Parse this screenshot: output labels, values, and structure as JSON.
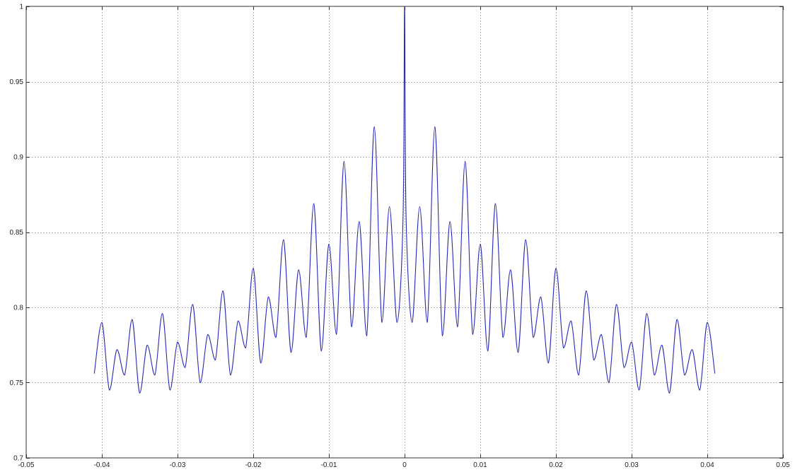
{
  "chart_data": {
    "type": "line",
    "title": "",
    "xlabel": "",
    "ylabel": "",
    "xlim": [
      -0.05,
      0.05
    ],
    "ylim": [
      0.7,
      1.0
    ],
    "grid": true,
    "legend": "none",
    "x_ticks": [
      -0.05,
      -0.04,
      -0.03,
      -0.02,
      -0.01,
      0,
      0.01,
      0.02,
      0.03,
      0.04,
      0.05
    ],
    "x_tick_labels": [
      "-0.05",
      "-0.04",
      "-0.03",
      "-0.02",
      "-0.01",
      "0",
      "0.01",
      "0.02",
      "0.03",
      "0.04",
      "0.05"
    ],
    "y_ticks": [
      0.7,
      0.75,
      0.8,
      0.85,
      0.9,
      0.95,
      1.0
    ],
    "y_tick_labels": [
      "0.7",
      "0.75",
      "0.8",
      "0.85",
      "0.9",
      "0.95",
      "1"
    ],
    "series": [
      {
        "color": "#2a2ab8",
        "x": [
          -0.041,
          -0.04,
          -0.039,
          -0.038,
          -0.037,
          -0.036,
          -0.035,
          -0.034,
          -0.033,
          -0.032,
          -0.031,
          -0.03,
          -0.029,
          -0.028,
          -0.027,
          -0.026,
          -0.025,
          -0.024,
          -0.023,
          -0.022,
          -0.021,
          -0.02,
          -0.019,
          -0.018,
          -0.017,
          -0.016,
          -0.015,
          -0.014,
          -0.013,
          -0.012,
          -0.011,
          -0.01,
          -0.009,
          -0.008,
          -0.007,
          -0.006,
          -0.005,
          -0.004,
          -0.003,
          -0.002,
          -0.001,
          -0.0002,
          0,
          0.0002,
          0.001,
          0.002,
          0.003,
          0.004,
          0.005,
          0.006,
          0.007,
          0.008,
          0.009,
          0.01,
          0.011,
          0.012,
          0.013,
          0.014,
          0.015,
          0.016,
          0.017,
          0.018,
          0.019,
          0.02,
          0.021,
          0.022,
          0.023,
          0.024,
          0.025,
          0.026,
          0.027,
          0.028,
          0.029,
          0.03,
          0.031,
          0.032,
          0.033,
          0.034,
          0.035,
          0.036,
          0.037,
          0.038,
          0.039,
          0.04,
          0.041
        ],
        "y": [
          0.756,
          0.79,
          0.745,
          0.772,
          0.755,
          0.792,
          0.743,
          0.775,
          0.755,
          0.796,
          0.745,
          0.777,
          0.76,
          0.802,
          0.75,
          0.782,
          0.765,
          0.811,
          0.755,
          0.791,
          0.773,
          0.826,
          0.763,
          0.807,
          0.78,
          0.845,
          0.77,
          0.825,
          0.78,
          0.869,
          0.771,
          0.842,
          0.782,
          0.897,
          0.787,
          0.857,
          0.781,
          0.92,
          0.79,
          0.867,
          0.79,
          0.86,
          1.0,
          0.86,
          0.79,
          0.867,
          0.79,
          0.92,
          0.781,
          0.857,
          0.787,
          0.897,
          0.782,
          0.842,
          0.771,
          0.869,
          0.78,
          0.825,
          0.77,
          0.845,
          0.78,
          0.807,
          0.763,
          0.826,
          0.773,
          0.791,
          0.755,
          0.811,
          0.765,
          0.782,
          0.75,
          0.802,
          0.76,
          0.777,
          0.745,
          0.796,
          0.755,
          0.775,
          0.743,
          0.792,
          0.755,
          0.772,
          0.745,
          0.79,
          0.756
        ]
      }
    ]
  }
}
